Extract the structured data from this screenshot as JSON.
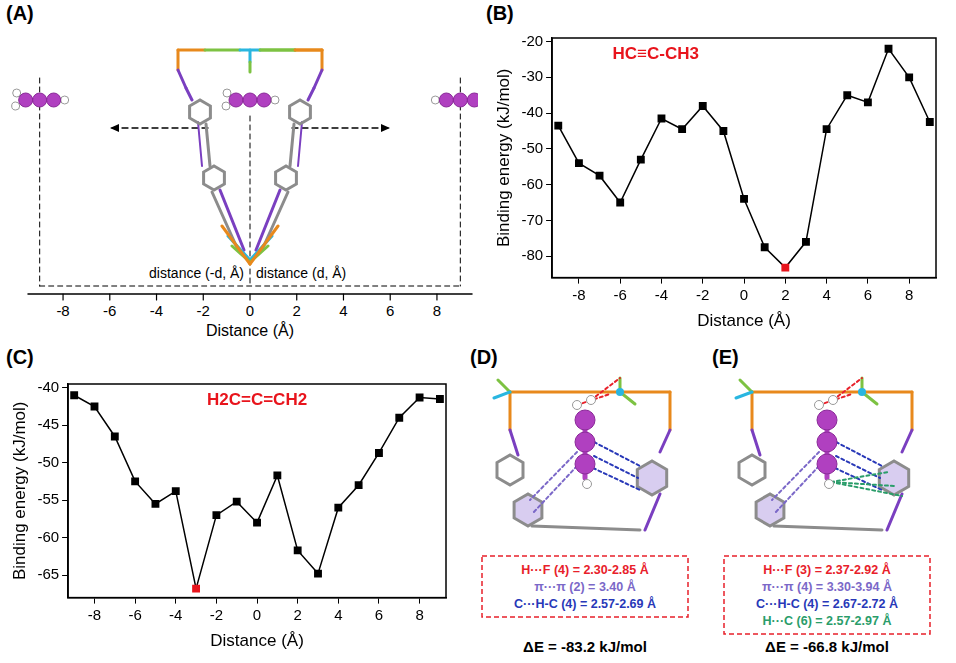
{
  "chart_data": [
    {
      "type": "line",
      "panel": "(B)",
      "title": "HC≡C-CH3",
      "x_label": "Distance (Å)",
      "y_label": "Binding energy (kJ/mol)",
      "x": [
        -9,
        -8,
        -7,
        -6,
        -5,
        -4,
        -3,
        -2,
        -1,
        0,
        1,
        2,
        3,
        4,
        5,
        6,
        7,
        8,
        9
      ],
      "values": [
        -43.5,
        -54,
        -57.5,
        -65,
        -53,
        -41.5,
        -44.5,
        -38,
        -45,
        -64,
        -77.5,
        -83.2,
        -76,
        -44.5,
        -35,
        -37,
        -22,
        -30,
        -42.5
      ],
      "color": "#000000",
      "colors": [
        "#000000",
        "#000000",
        "#000000",
        "#000000",
        "#000000",
        "#000000",
        "#000000",
        "#000000",
        "#000000",
        "#000000",
        "#000000",
        "#e8141c",
        "#000000",
        "#000000",
        "#000000",
        "#000000",
        "#000000",
        "#000000",
        "#000000"
      ],
      "marker": "square",
      "line_style": "solid",
      "xlim": [
        -9.3,
        9.3
      ],
      "xticks": [
        -8,
        -6,
        -4,
        -2,
        0,
        2,
        4,
        6,
        8
      ],
      "ylim": [
        -86,
        -19
      ],
      "yticks": [
        -80,
        -70,
        -60,
        -50,
        -40,
        -30,
        -20
      ],
      "grid": false
    },
    {
      "type": "line",
      "panel": "(C)",
      "title": "H2C=C=CH2",
      "x_label": "Distance (Å)",
      "y_label": "Binding energy (kJ/mol)",
      "x": [
        -9,
        -8,
        -7,
        -6,
        -5,
        -4,
        -3,
        -2,
        -1,
        0,
        1,
        2,
        3,
        4,
        5,
        6,
        7,
        8,
        9
      ],
      "values": [
        -41,
        -42.5,
        -46.5,
        -52.5,
        -55.5,
        -53.8,
        -66.8,
        -57,
        -55.2,
        -58,
        -51.7,
        -61.7,
        -64.8,
        -56,
        -53,
        -48.7,
        -44,
        -41.3,
        -41.5
      ],
      "color": "#000000",
      "colors": [
        "#000000",
        "#000000",
        "#000000",
        "#000000",
        "#000000",
        "#000000",
        "#e8141c",
        "#000000",
        "#000000",
        "#000000",
        "#000000",
        "#000000",
        "#000000",
        "#000000",
        "#000000",
        "#000000",
        "#000000",
        "#000000",
        "#000000"
      ],
      "marker": "square",
      "line_style": "solid",
      "xlim": [
        -9.3,
        9.3
      ],
      "xticks": [
        -8,
        -6,
        -4,
        -2,
        0,
        2,
        4,
        6,
        8
      ],
      "ylim": [
        -68,
        -39.5
      ],
      "yticks": [
        -65,
        -60,
        -55,
        -50,
        -45,
        -40
      ],
      "grid": false
    }
  ],
  "diagrams": {
    "A": {
      "panel": "(A)",
      "x_label": "Distance (Å)",
      "xlim": [
        -9.5,
        9.5
      ],
      "xticks": [
        -8,
        -6,
        -4,
        -2,
        0,
        2,
        4,
        6,
        8
      ],
      "molecule_positions": [
        -9,
        0,
        9
      ],
      "left_label": "distance (-d, Å)",
      "right_label": "distance (d, Å)"
    },
    "D": {
      "panel": "(D)",
      "interactions": [
        {
          "text": "H···F (4) = 2.30-2.85 Å",
          "color": "#e8202a"
        },
        {
          "text": "π···π (2) = 3.40 Å",
          "color": "#7b68c8"
        },
        {
          "text": "C···H-C (4) = 2.57-2.69 Å",
          "color": "#2838b8"
        }
      ],
      "energy": "ΔE = -83.2 kJ/mol"
    },
    "E": {
      "panel": "(E)",
      "interactions": [
        {
          "text": "H···F (3) = 2.37-2.92 Å",
          "color": "#e8202a"
        },
        {
          "text": "π···π (4) = 3.30-3.94 Å",
          "color": "#7b68c8"
        },
        {
          "text": "C···H-C (4) = 2.67-2.72 Å",
          "color": "#2838b8"
        },
        {
          "text": "H···C (6) = 2.57-2.97 Å",
          "color": "#2a9d6a"
        }
      ],
      "energy": "ΔE = -66.8 kJ/mol"
    }
  }
}
